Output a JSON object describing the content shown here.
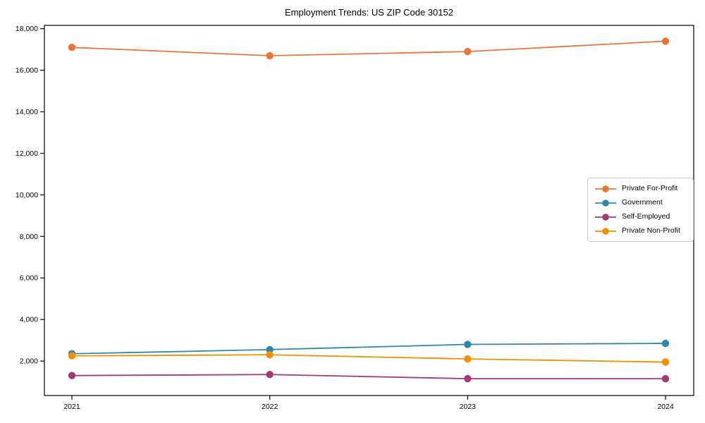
{
  "chart_data": {
    "type": "line",
    "title": "Employment Trends: US ZIP Code 30152",
    "categories": [
      "2021",
      "2022",
      "2023",
      "2024"
    ],
    "series": [
      {
        "name": "Private For-Profit",
        "color": "#E8763A",
        "values": [
          17100,
          16700,
          16900,
          17400
        ]
      },
      {
        "name": "Government",
        "color": "#2E86AB",
        "values": [
          2350,
          2550,
          2800,
          2850
        ]
      },
      {
        "name": "Self-Employed",
        "color": "#A23B72",
        "values": [
          1300,
          1350,
          1150,
          1150
        ]
      },
      {
        "name": "Private Non-Profit",
        "color": "#F18F01",
        "values": [
          2250,
          2300,
          2100,
          1950
        ]
      }
    ],
    "xlabel": "",
    "ylabel": "",
    "ylim": [
      340,
      18160
    ],
    "yticks": [
      2000,
      4000,
      6000,
      8000,
      10000,
      12000,
      14000,
      16000,
      18000
    ],
    "ytick_labels": [
      "2,000",
      "4,000",
      "6,000",
      "8,000",
      "10,000",
      "12,000",
      "14,000",
      "16,000",
      "18,000"
    ],
    "grid": false,
    "legend_position": "center right",
    "axis_color": "#000000",
    "background_color": "#ffffff"
  }
}
